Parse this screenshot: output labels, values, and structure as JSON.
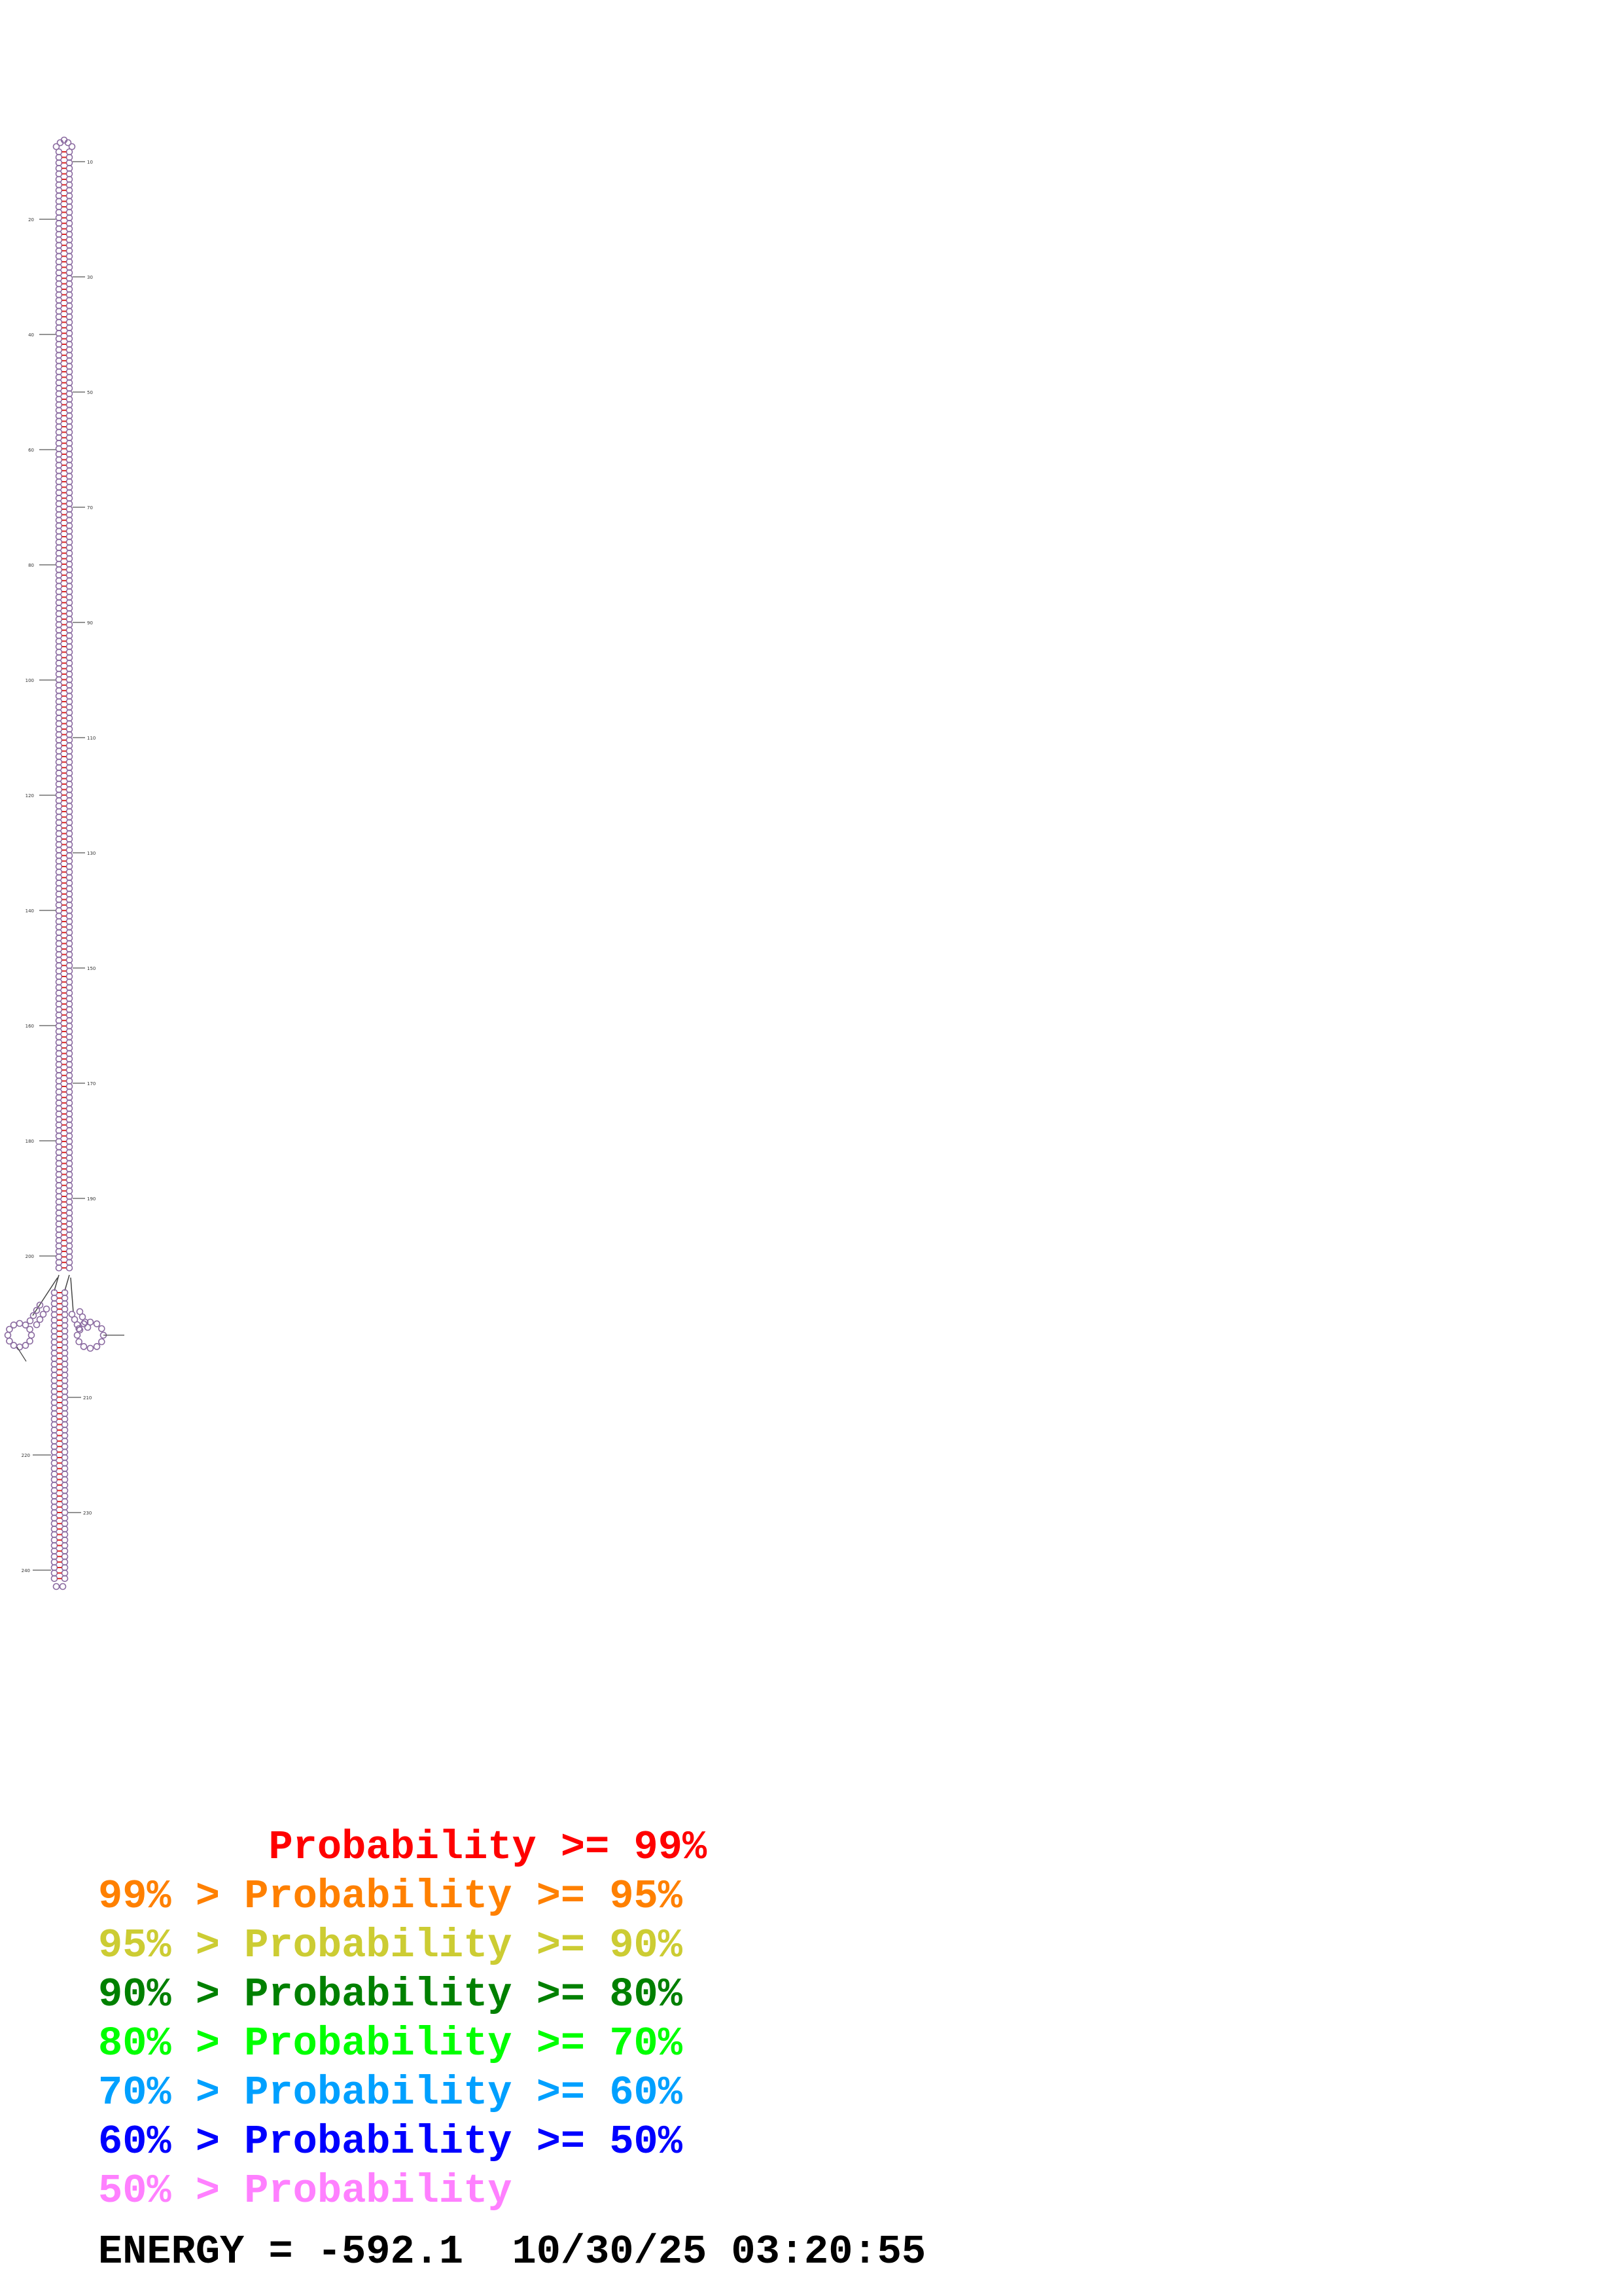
{
  "diagram": {
    "type": "rna-secondary-structure",
    "pair_color": "#d9292a",
    "base_outline_color": "#8a6aa0",
    "tick_labels": [
      "10",
      "20",
      "30",
      "40",
      "50",
      "60",
      "70",
      "80",
      "90",
      "100",
      "110",
      "120",
      "130",
      "140",
      "150",
      "160",
      "170",
      "180",
      "190",
      "200",
      "210",
      "220",
      "230",
      "240",
      "250",
      "260",
      "270",
      "280",
      "290",
      "300",
      "310",
      "320",
      "330",
      "340",
      "350",
      "360",
      "370",
      "380",
      "390",
      "400",
      "410",
      "420",
      "430",
      "440",
      "450",
      "460",
      "470",
      "480",
      "490",
      "500",
      "510",
      "520"
    ]
  },
  "legend": [
    {
      "prefix": "       ",
      "label": "Probability >= 99%",
      "color": "#ff0000"
    },
    {
      "prefix": "99% > ",
      "label": "Probability >= 95%",
      "color": "#ff8000"
    },
    {
      "prefix": "95% > ",
      "label": "Probability >= 90%",
      "color": "#cccc33"
    },
    {
      "prefix": "90% > ",
      "label": "Probability >= 80%",
      "color": "#008000"
    },
    {
      "prefix": "80% > ",
      "label": "Probability >= 70%",
      "color": "#00ff00"
    },
    {
      "prefix": "70% > ",
      "label": "Probability >= 60%",
      "color": "#00a0ff"
    },
    {
      "prefix": "60% > ",
      "label": "Probability >= 50%",
      "color": "#0000ff"
    },
    {
      "prefix": "50% > ",
      "label": "Probability",
      "color": "#ff80ff"
    }
  ],
  "footer": {
    "energy": "ENERGY = -592.1",
    "timestamp": "10/30/25 03:20:55"
  }
}
